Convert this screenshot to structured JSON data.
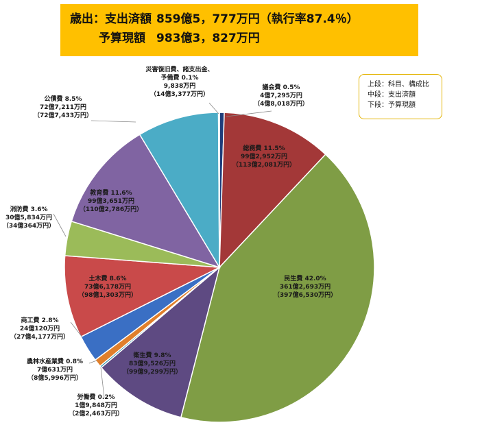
{
  "header": {
    "line1_label": "歳出：支出済額",
    "line1_value": "859億5，777万円（執行率87.4％）",
    "line2_label": "予算現額",
    "line2_value": "983億3，827万円"
  },
  "legend": {
    "upper": "上段：科目、構成比",
    "middle": "中段：支出済額",
    "lower": "下段：予算現額"
  },
  "chart_data": {
    "type": "pie",
    "title": "",
    "slices": [
      {
        "id": "gikai",
        "name": "議会費",
        "percent": 0.5,
        "line1": "議会費  0.5%",
        "line2": "4億7,295万円",
        "line3": "（4億8,018万円）",
        "color": "#1f3d7a"
      },
      {
        "id": "somu",
        "name": "総務費",
        "percent": 11.5,
        "line1": "総務費  11.5%",
        "line2": "99億2,952万円",
        "line3": "（113億2,081万円）",
        "color": "#a33838"
      },
      {
        "id": "minsei",
        "name": "民生費",
        "percent": 42.0,
        "line1": "民生費  42.0%",
        "line2": "361億2,693万円",
        "line3": "（397億6,530万円）",
        "color": "#7f9d45"
      },
      {
        "id": "eisei",
        "name": "衛生費",
        "percent": 9.8,
        "line1": "衛生費  9.8%",
        "line2": "83億9,526万円",
        "line3": "（99億9,299万円）",
        "color": "#5e4a82"
      },
      {
        "id": "rodo",
        "name": "労働費",
        "percent": 0.2,
        "line1": "労働費  0.2%",
        "line2": "1億9,848万円",
        "line3": "（2億2,463万円）",
        "color": "#2f8ea8"
      },
      {
        "id": "norin",
        "name": "農林水産業費",
        "percent": 0.8,
        "line1": "農林水産業費  0.8%",
        "line2": "7億631万円",
        "line3": "（8億5,996万円）",
        "color": "#e07f2b"
      },
      {
        "id": "shoko",
        "name": "商工費",
        "percent": 2.8,
        "line1": "商工費  2.8%",
        "line2": "24億120万円",
        "line3": "（27億4,177万円）",
        "color": "#3a6fc4"
      },
      {
        "id": "doboku",
        "name": "土木費",
        "percent": 8.6,
        "line1": "土木費  8.6%",
        "line2": "73億6,178万円",
        "line3": "（98億1,303万円）",
        "color": "#c94a4a"
      },
      {
        "id": "shobo",
        "name": "消防費",
        "percent": 3.6,
        "line1": "消防費  3.6%",
        "line2": "30億5,834万円",
        "line3": "（34億364万円）",
        "color": "#9bbb59"
      },
      {
        "id": "kyoiku",
        "name": "教育費",
        "percent": 11.6,
        "line1": "教育費  11.6%",
        "line2": "99億3,651万円",
        "line3": "（110億2,786万円）",
        "color": "#8064a2"
      },
      {
        "id": "kosai",
        "name": "公債費",
        "percent": 8.5,
        "line1": "公債費  8.5%",
        "line2": "72億7,211万円",
        "line3": "（72億7,433万円）",
        "color": "#4bacc6"
      },
      {
        "id": "saigai",
        "name": "災害復旧費、諸支出金、予備費",
        "percent": 0.1,
        "line1": "災害復旧費、諸支出金、",
        "line1b": "予備費  0.1%",
        "line2": "9,838万円",
        "line3": "（14億3,377万円）",
        "color": "#8eb4e3"
      }
    ]
  }
}
